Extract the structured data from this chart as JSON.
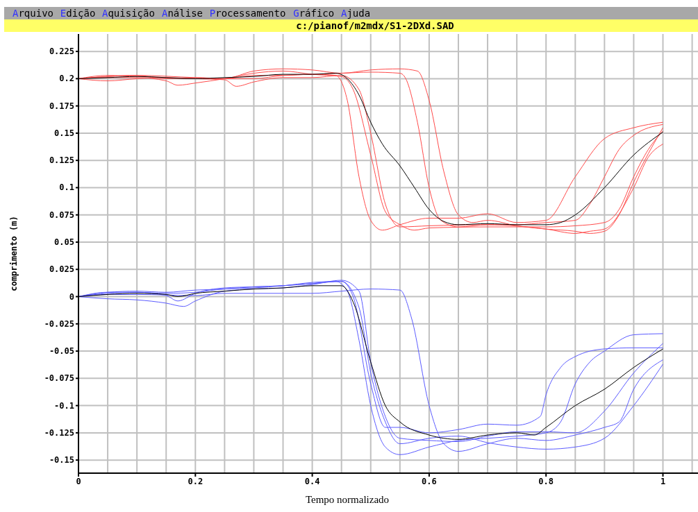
{
  "chart_data": {
    "type": "line",
    "title": "c:/pianof/m2mdx/S1-2DXd.SAD",
    "xlabel": "Tempo normalizado",
    "ylabel": "comprimento (m)",
    "annotations": [
      "Arquivo",
      "Edição",
      "Aquisição",
      "Análise",
      "Processamento",
      "Gráfico",
      "Ajuda"
    ],
    "xlim": [
      0,
      1.06
    ],
    "ylim": [
      -0.162,
      0.241
    ],
    "xticks": [
      0,
      {
        "value": 0.05,
        "label": null
      },
      {
        "value": 0.1,
        "label": null
      },
      {
        "value": 0.15,
        "label": null
      },
      0.2,
      {
        "value": 0.25,
        "label": null
      },
      {
        "value": 0.3,
        "label": null
      },
      {
        "value": 0.35,
        "label": null
      },
      0.4,
      {
        "value": 0.45,
        "label": null
      },
      {
        "value": 0.5,
        "label": null
      },
      {
        "value": 0.55,
        "label": null
      },
      0.6,
      {
        "value": 0.65,
        "label": null
      },
      {
        "value": 0.7,
        "label": null
      },
      {
        "value": 0.75,
        "label": null
      },
      0.8,
      {
        "value": 0.85,
        "label": null
      },
      {
        "value": 0.9,
        "label": null
      },
      {
        "value": 0.95,
        "label": null
      },
      1,
      {
        "value": 1.05,
        "label": null
      }
    ],
    "yticks": [
      -0.15,
      -0.125,
      -0.1,
      -0.075,
      -0.05,
      -0.025,
      0,
      0.025,
      0.05,
      0.075,
      0.1,
      0.125,
      0.15,
      0.175,
      0.2,
      0.225
    ],
    "grid": true,
    "marker": "none",
    "line_style": "solid",
    "series": [
      {
        "color": "#ff4a4a",
        "x": [
          0,
          0.05,
          0.1,
          0.15,
          0.2,
          0.25,
          0.3,
          0.35,
          0.4,
          0.44,
          0.46,
          0.48,
          0.5,
          0.52,
          0.55,
          0.6,
          0.65,
          0.7,
          0.75,
          0.8,
          0.85,
          0.9,
          0.95,
          1
        ],
        "values": [
          0.2,
          0.202,
          0.203,
          0.2,
          0.201,
          0.2,
          0.203,
          0.203,
          0.204,
          0.203,
          0.18,
          0.11,
          0.07,
          0.061,
          0.066,
          0.072,
          0.072,
          0.076,
          0.068,
          0.07,
          0.11,
          0.145,
          0.155,
          0.16
        ]
      },
      {
        "color": "#ff4a4a",
        "x": [
          0,
          0.05,
          0.1,
          0.15,
          0.17,
          0.2,
          0.25,
          0.3,
          0.35,
          0.4,
          0.45,
          0.47,
          0.5,
          0.525,
          0.55,
          0.575,
          0.6,
          0.7,
          0.8,
          0.85,
          0.9,
          0.925,
          0.95,
          0.975,
          1
        ],
        "values": [
          0.2,
          0.201,
          0.201,
          0.198,
          0.194,
          0.196,
          0.2,
          0.205,
          0.207,
          0.204,
          0.202,
          0.19,
          0.13,
          0.078,
          0.066,
          0.061,
          0.063,
          0.064,
          0.064,
          0.065,
          0.068,
          0.08,
          0.11,
          0.135,
          0.152
        ]
      },
      {
        "color": "#ff4a4a",
        "x": [
          0,
          0.05,
          0.1,
          0.15,
          0.2,
          0.25,
          0.27,
          0.3,
          0.35,
          0.4,
          0.45,
          0.48,
          0.5,
          0.525,
          0.55,
          0.6,
          0.7,
          0.8,
          0.85,
          0.875,
          0.9,
          0.95,
          0.975,
          1
        ],
        "values": [
          0.2,
          0.198,
          0.2,
          0.201,
          0.2,
          0.199,
          0.193,
          0.197,
          0.201,
          0.201,
          0.203,
          0.19,
          0.15,
          0.085,
          0.064,
          0.065,
          0.066,
          0.062,
          0.058,
          0.06,
          0.062,
          0.1,
          0.128,
          0.14
        ]
      },
      {
        "color": "#ff4a4a",
        "x": [
          0,
          0.05,
          0.1,
          0.2,
          0.3,
          0.35,
          0.4,
          0.45,
          0.5,
          0.55,
          0.56,
          0.58,
          0.6,
          0.62,
          0.65,
          0.7,
          0.75,
          0.8,
          0.85,
          0.875,
          0.9,
          0.925,
          0.95,
          1
        ],
        "values": [
          0.2,
          0.203,
          0.202,
          0.2,
          0.2,
          0.203,
          0.204,
          0.205,
          0.206,
          0.205,
          0.2,
          0.16,
          0.1,
          0.07,
          0.064,
          0.066,
          0.066,
          0.068,
          0.07,
          0.085,
          0.11,
          0.135,
          0.148,
          0.158
        ]
      },
      {
        "color": "#ff4a4a",
        "x": [
          0,
          0.05,
          0.1,
          0.2,
          0.25,
          0.3,
          0.35,
          0.4,
          0.45,
          0.5,
          0.55,
          0.58,
          0.6,
          0.625,
          0.65,
          0.675,
          0.7,
          0.75,
          0.8,
          0.85,
          0.875,
          0.9,
          0.925,
          0.95,
          1
        ],
        "values": [
          0.2,
          0.202,
          0.203,
          0.201,
          0.2,
          0.207,
          0.209,
          0.208,
          0.205,
          0.208,
          0.209,
          0.207,
          0.18,
          0.115,
          0.075,
          0.068,
          0.07,
          0.065,
          0.062,
          0.06,
          0.058,
          0.06,
          0.075,
          0.105,
          0.155
        ]
      },
      {
        "color": "#000000",
        "x": [
          0,
          0.05,
          0.1,
          0.2,
          0.25,
          0.3,
          0.35,
          0.4,
          0.44,
          0.46,
          0.48,
          0.5,
          0.52,
          0.55,
          0.575,
          0.6,
          0.625,
          0.65,
          0.7,
          0.75,
          0.8,
          0.825,
          0.85,
          0.9,
          0.95,
          1
        ],
        "values": [
          0.2,
          0.201,
          0.202,
          0.2,
          0.201,
          0.202,
          0.204,
          0.204,
          0.205,
          0.2,
          0.185,
          0.16,
          0.14,
          0.12,
          0.1,
          0.08,
          0.069,
          0.066,
          0.067,
          0.066,
          0.066,
          0.068,
          0.075,
          0.1,
          0.13,
          0.151
        ]
      },
      {
        "color": "#5a5aff",
        "x": [
          0,
          0.05,
          0.1,
          0.15,
          0.2,
          0.25,
          0.3,
          0.35,
          0.4,
          0.44,
          0.46,
          0.48,
          0.5,
          0.525,
          0.55,
          0.6,
          0.65,
          0.7,
          0.75,
          0.8,
          0.825,
          0.85,
          0.875,
          0.9,
          0.95,
          1
        ],
        "values": [
          0,
          0.004,
          0.004,
          0.003,
          0.004,
          0.007,
          0.008,
          0.01,
          0.013,
          0.014,
          0.005,
          -0.04,
          -0.1,
          -0.138,
          -0.145,
          -0.138,
          -0.132,
          -0.13,
          -0.128,
          -0.125,
          -0.115,
          -0.08,
          -0.06,
          -0.05,
          -0.035,
          -0.034
        ]
      },
      {
        "color": "#5a5aff",
        "x": [
          0,
          0.05,
          0.1,
          0.15,
          0.17,
          0.2,
          0.25,
          0.3,
          0.35,
          0.4,
          0.45,
          0.47,
          0.5,
          0.525,
          0.55,
          0.6,
          0.65,
          0.7,
          0.75,
          0.79,
          0.8,
          0.825,
          0.85,
          0.9,
          0.95,
          1
        ],
        "values": [
          0,
          0.003,
          0.004,
          0.001,
          -0.004,
          0.003,
          0.008,
          0.009,
          0.01,
          0.012,
          0.014,
          0,
          -0.08,
          -0.12,
          -0.12,
          -0.125,
          -0.122,
          -0.117,
          -0.118,
          -0.11,
          -0.09,
          -0.065,
          -0.055,
          -0.048,
          -0.047,
          -0.047
        ]
      },
      {
        "color": "#5a5aff",
        "x": [
          0,
          0.05,
          0.1,
          0.15,
          0.18,
          0.2,
          0.25,
          0.3,
          0.35,
          0.4,
          0.45,
          0.48,
          0.5,
          0.525,
          0.55,
          0.6,
          0.65,
          0.7,
          0.75,
          0.8,
          0.85,
          0.9,
          0.95,
          1
        ],
        "values": [
          0,
          -0.002,
          -0.003,
          -0.006,
          -0.009,
          -0.004,
          0.005,
          0.007,
          0.008,
          0.011,
          0.015,
          0.005,
          -0.06,
          -0.11,
          -0.13,
          -0.132,
          -0.133,
          -0.128,
          -0.124,
          -0.124,
          -0.125,
          -0.105,
          -0.07,
          -0.043
        ]
      },
      {
        "color": "#5a5aff",
        "x": [
          0,
          0.05,
          0.1,
          0.2,
          0.25,
          0.3,
          0.35,
          0.4,
          0.45,
          0.5,
          0.55,
          0.57,
          0.6,
          0.625,
          0.65,
          0.7,
          0.75,
          0.8,
          0.85,
          0.9,
          0.925,
          0.95,
          1
        ],
        "values": [
          0,
          0.002,
          0.002,
          0.001,
          0.003,
          0.003,
          0.003,
          0.003,
          0.005,
          0.007,
          0.006,
          -0.02,
          -0.1,
          -0.135,
          -0.142,
          -0.135,
          -0.13,
          -0.132,
          -0.127,
          -0.12,
          -0.115,
          -0.085,
          -0.058
        ]
      },
      {
        "color": "#5a5aff",
        "x": [
          0,
          0.05,
          0.1,
          0.15,
          0.2,
          0.25,
          0.3,
          0.35,
          0.4,
          0.45,
          0.48,
          0.5,
          0.525,
          0.55,
          0.6,
          0.65,
          0.7,
          0.75,
          0.8,
          0.85,
          0.9,
          0.95,
          1
        ],
        "values": [
          0,
          0.004,
          0.005,
          0.004,
          0.006,
          0.007,
          0.009,
          0.01,
          0.012,
          0.014,
          -0.01,
          -0.07,
          -0.115,
          -0.135,
          -0.13,
          -0.128,
          -0.134,
          -0.138,
          -0.14,
          -0.138,
          -0.13,
          -0.1,
          -0.062
        ]
      },
      {
        "color": "#000000",
        "x": [
          0,
          0.05,
          0.1,
          0.15,
          0.17,
          0.2,
          0.25,
          0.3,
          0.35,
          0.4,
          0.45,
          0.47,
          0.5,
          0.525,
          0.55,
          0.6,
          0.65,
          0.7,
          0.75,
          0.78,
          0.8,
          0.85,
          0.9,
          0.95,
          1
        ],
        "values": [
          0,
          0.002,
          0.003,
          0.002,
          0,
          0.003,
          0.005,
          0.007,
          0.008,
          0.01,
          0.01,
          -0.005,
          -0.06,
          -0.1,
          -0.115,
          -0.127,
          -0.131,
          -0.127,
          -0.125,
          -0.127,
          -0.12,
          -0.1,
          -0.085,
          -0.065,
          -0.048
        ]
      }
    ]
  }
}
